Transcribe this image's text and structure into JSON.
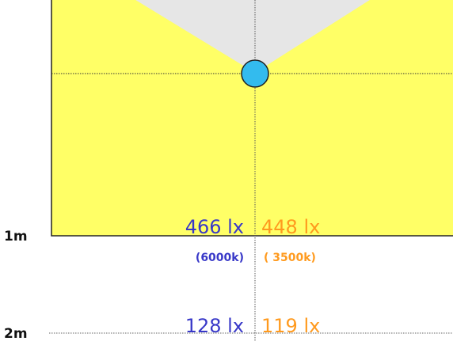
{
  "levels": [
    {
      "distance": "1m",
      "cool_lux": "466 lx",
      "warm_lux": "448 lx",
      "cool_temp": "(6000k)",
      "warm_temp": "( 3500k)"
    },
    {
      "distance": "2m",
      "cool_lux": "128 lx",
      "warm_lux": "119 lx"
    }
  ]
}
